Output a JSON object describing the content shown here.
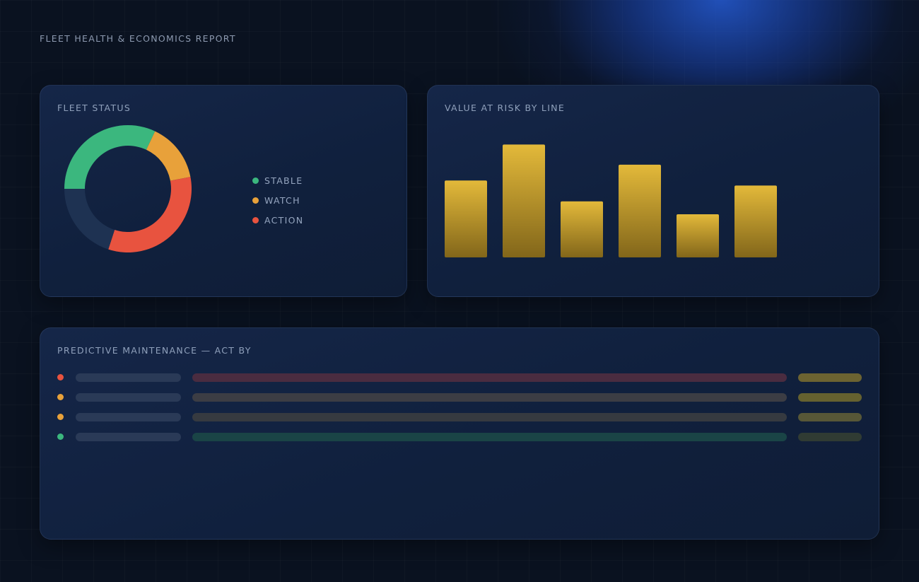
{
  "report": {
    "title": "FLEET HEALTH & ECONOMICS REPORT"
  },
  "colors": {
    "stable": "#3bb77e",
    "watch": "#e8a13a",
    "action": "#e8533f",
    "remainder": "#1e3252",
    "bar_top": "#e3b93a",
    "bar_bottom": "#82661a"
  },
  "fleet_status": {
    "title": "FLEET STATUS",
    "legend": [
      {
        "label": "STABLE",
        "color": "#3bb77e"
      },
      {
        "label": "WATCH",
        "color": "#e8a13a"
      },
      {
        "label": "ACTION",
        "color": "#e8533f"
      }
    ]
  },
  "value_at_risk": {
    "title": "VALUE AT RISK BY LINE"
  },
  "predictive_maintenance": {
    "title": "PREDICTIVE MAINTENANCE — ACT BY",
    "rows": [
      {
        "status": "action",
        "dot": "#e8533f",
        "track_color": "#4a2c40",
        "date_color": "#6c6331"
      },
      {
        "status": "watch",
        "dot": "#e8a13a",
        "track_color": "#3c3d44",
        "date_color": "#65612f"
      },
      {
        "status": "watch",
        "dot": "#e8a13a",
        "track_color": "#363a40",
        "date_color": "#575737"
      },
      {
        "status": "stable",
        "dot": "#3bb77e",
        "track_color": "#1a4446",
        "date_color": "#303b33"
      }
    ]
  },
  "chart_data": [
    {
      "type": "pie",
      "variant": "donut",
      "start": "left",
      "direction": "clockwise",
      "segments": [
        {
          "label": "STABLE",
          "value": 32,
          "color": "#3bb77e"
        },
        {
          "label": "WATCH",
          "value": 15,
          "color": "#e8a13a"
        },
        {
          "label": "ACTION",
          "value": 33,
          "color": "#e8533f"
        },
        {
          "label": "",
          "value": 20,
          "color": "#1e3252"
        }
      ]
    },
    {
      "type": "bar",
      "values": [
        107,
        157,
        78,
        129,
        60,
        100
      ],
      "ylim": [
        0,
        180
      ],
      "grid": false,
      "legend": false
    }
  ]
}
